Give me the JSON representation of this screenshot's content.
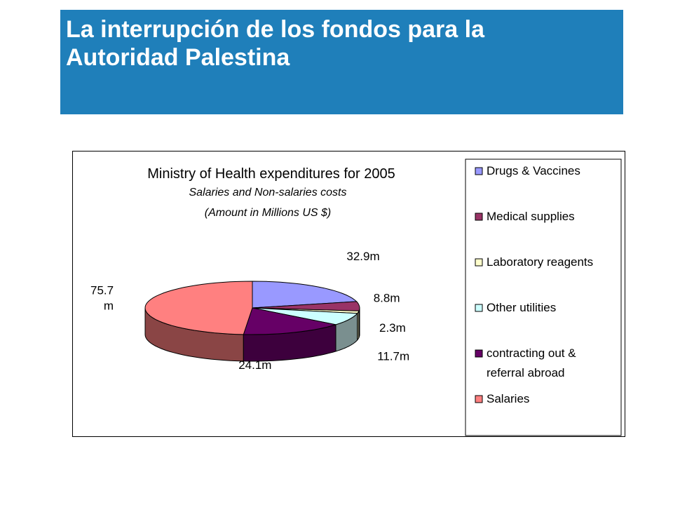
{
  "slide": {
    "title": "La interrupción de los fondos para la\nAutoridad Palestina"
  },
  "colors": {
    "title_bar": "#1f7fba",
    "title_text": "#ffffff"
  },
  "chart_data": {
    "type": "pie",
    "style": "3d-exploded",
    "title": "Ministry of Health expenditures for 2005",
    "subtitle_1": "Salaries and Non-salaries costs",
    "subtitle_2": "(Amount in Millions US $)",
    "legend_position": "right",
    "slices": [
      {
        "name": "Drugs & Vaccines",
        "value": 32.9,
        "label": "32.9m",
        "color": "#9999ff",
        "side_color": "#5c5c99"
      },
      {
        "name": "Medical supplies",
        "value": 8.8,
        "label": "8.8m",
        "color": "#993366",
        "side_color": "#5c1f3d"
      },
      {
        "name": "Laboratory reagents",
        "value": 2.3,
        "label": "2.3m",
        "color": "#ffffcc",
        "side_color": "#99997a"
      },
      {
        "name": "Other utilities",
        "value": 11.7,
        "label": "11.7m",
        "color": "#ccffff",
        "side_color": "#7a8f8f"
      },
      {
        "name": "contracting out & referral abroad",
        "value": 24.1,
        "label": "24.1m",
        "color": "#660066",
        "side_color": "#3d003d"
      },
      {
        "name": "Salaries",
        "value": 75.7,
        "label": "75.7 m",
        "color": "#ff8080",
        "side_color": "#8a4545"
      }
    ]
  }
}
